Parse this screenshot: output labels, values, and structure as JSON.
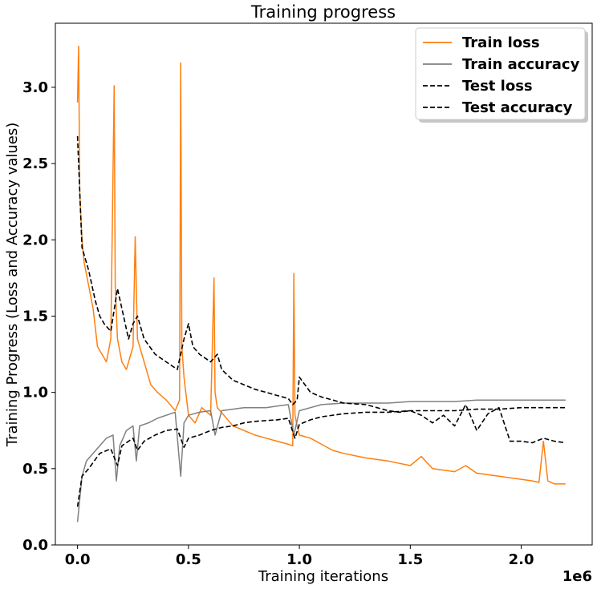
{
  "chart_data": {
    "type": "line",
    "title": "Training progress",
    "xlabel": "Training iterations",
    "ylabel": "Training Progress (Loss and Accuracy values)",
    "x_offset_label": "1e6",
    "xlim": [
      -0.1,
      2.32
    ],
    "ylim": [
      0.0,
      3.42
    ],
    "xticks": [
      0.0,
      0.5,
      1.0,
      1.5,
      2.0
    ],
    "xtick_labels": [
      "0.0",
      "0.5",
      "1.0",
      "1.5",
      "2.0"
    ],
    "yticks": [
      0.0,
      0.5,
      1.0,
      1.5,
      2.0,
      2.5,
      3.0
    ],
    "ytick_labels": [
      "0.0",
      "0.5",
      "1.0",
      "1.5",
      "2.0",
      "2.5",
      "3.0"
    ],
    "grid": false,
    "legend_position": "top-right",
    "colors": {
      "train_loss": "#ff7f0e",
      "train_accuracy": "#808080",
      "test_loss": "#000000",
      "test_accuracy": "#000000"
    },
    "series": [
      {
        "name": "Train loss",
        "style": "solid",
        "color": "#ff7f0e",
        "x": [
          0.0,
          0.005,
          0.01,
          0.02,
          0.03,
          0.05,
          0.07,
          0.09,
          0.11,
          0.13,
          0.15,
          0.165,
          0.17,
          0.18,
          0.2,
          0.22,
          0.25,
          0.26,
          0.27,
          0.3,
          0.33,
          0.36,
          0.4,
          0.44,
          0.46,
          0.465,
          0.47,
          0.48,
          0.5,
          0.53,
          0.56,
          0.6,
          0.615,
          0.62,
          0.63,
          0.66,
          0.7,
          0.75,
          0.8,
          0.85,
          0.9,
          0.95,
          0.97,
          0.975,
          0.98,
          0.99,
          1.0,
          1.05,
          1.1,
          1.15,
          1.2,
          1.3,
          1.4,
          1.5,
          1.55,
          1.6,
          1.7,
          1.75,
          1.8,
          1.9,
          2.0,
          2.05,
          2.08,
          2.1,
          2.12,
          2.15,
          2.2
        ],
        "y": [
          2.9,
          3.27,
          2.3,
          2.0,
          1.85,
          1.7,
          1.55,
          1.3,
          1.25,
          1.2,
          1.35,
          3.01,
          1.7,
          1.35,
          1.2,
          1.15,
          1.3,
          2.02,
          1.35,
          1.2,
          1.05,
          1.0,
          0.95,
          0.88,
          0.95,
          3.16,
          1.3,
          1.1,
          0.85,
          0.8,
          0.9,
          0.85,
          1.75,
          1.0,
          0.9,
          0.85,
          0.78,
          0.75,
          0.72,
          0.7,
          0.68,
          0.66,
          0.65,
          1.78,
          0.85,
          0.78,
          0.72,
          0.7,
          0.66,
          0.62,
          0.6,
          0.57,
          0.55,
          0.52,
          0.58,
          0.5,
          0.48,
          0.52,
          0.47,
          0.45,
          0.43,
          0.42,
          0.41,
          0.68,
          0.42,
          0.4,
          0.4
        ]
      },
      {
        "name": "Train accuracy",
        "style": "solid",
        "color": "#808080",
        "x": [
          0.0,
          0.02,
          0.04,
          0.07,
          0.1,
          0.13,
          0.16,
          0.175,
          0.19,
          0.22,
          0.25,
          0.265,
          0.28,
          0.32,
          0.36,
          0.4,
          0.44,
          0.465,
          0.48,
          0.5,
          0.55,
          0.6,
          0.62,
          0.65,
          0.7,
          0.75,
          0.8,
          0.85,
          0.9,
          0.95,
          0.975,
          1.0,
          1.05,
          1.1,
          1.2,
          1.3,
          1.4,
          1.5,
          1.6,
          1.7,
          1.8,
          1.9,
          2.0,
          2.1,
          2.2
        ],
        "y": [
          0.15,
          0.45,
          0.55,
          0.6,
          0.65,
          0.7,
          0.72,
          0.42,
          0.65,
          0.75,
          0.78,
          0.55,
          0.78,
          0.8,
          0.83,
          0.85,
          0.87,
          0.45,
          0.8,
          0.85,
          0.87,
          0.88,
          0.72,
          0.88,
          0.89,
          0.9,
          0.9,
          0.9,
          0.91,
          0.92,
          0.72,
          0.88,
          0.9,
          0.92,
          0.93,
          0.93,
          0.93,
          0.94,
          0.94,
          0.94,
          0.95,
          0.95,
          0.95,
          0.95,
          0.95
        ]
      },
      {
        "name": "Test loss",
        "style": "dashed",
        "color": "#000000",
        "x": [
          0.0,
          0.02,
          0.05,
          0.08,
          0.1,
          0.12,
          0.15,
          0.18,
          0.2,
          0.23,
          0.25,
          0.27,
          0.3,
          0.35,
          0.4,
          0.45,
          0.48,
          0.5,
          0.52,
          0.55,
          0.6,
          0.63,
          0.65,
          0.7,
          0.75,
          0.8,
          0.85,
          0.9,
          0.95,
          0.97,
          0.99,
          1.0,
          1.05,
          1.1,
          1.15,
          1.2,
          1.3,
          1.35,
          1.4,
          1.45,
          1.5,
          1.55,
          1.6,
          1.65,
          1.7,
          1.75,
          1.8,
          1.85,
          1.9,
          1.95,
          2.0,
          2.05,
          2.1,
          2.15,
          2.2
        ],
        "y": [
          2.68,
          1.95,
          1.8,
          1.6,
          1.5,
          1.45,
          1.4,
          1.68,
          1.55,
          1.35,
          1.45,
          1.5,
          1.35,
          1.25,
          1.2,
          1.15,
          1.35,
          1.45,
          1.3,
          1.25,
          1.2,
          1.25,
          1.15,
          1.08,
          1.05,
          1.02,
          1.0,
          0.98,
          0.96,
          0.92,
          0.95,
          1.1,
          1.0,
          0.97,
          0.95,
          0.93,
          0.92,
          0.9,
          0.88,
          0.87,
          0.88,
          0.85,
          0.8,
          0.85,
          0.78,
          0.92,
          0.75,
          0.86,
          0.9,
          0.68,
          0.68,
          0.67,
          0.7,
          0.68,
          0.67
        ]
      },
      {
        "name": "Test accuracy",
        "style": "dashed",
        "color": "#000000",
        "x": [
          0.0,
          0.02,
          0.05,
          0.1,
          0.15,
          0.18,
          0.2,
          0.25,
          0.27,
          0.3,
          0.35,
          0.4,
          0.45,
          0.48,
          0.5,
          0.55,
          0.6,
          0.65,
          0.7,
          0.75,
          0.8,
          0.9,
          0.95,
          0.98,
          1.0,
          1.05,
          1.1,
          1.2,
          1.3,
          1.4,
          1.5,
          1.6,
          1.7,
          1.8,
          1.9,
          2.0,
          2.1,
          2.2
        ],
        "y": [
          0.25,
          0.45,
          0.5,
          0.6,
          0.63,
          0.52,
          0.65,
          0.7,
          0.62,
          0.68,
          0.72,
          0.75,
          0.76,
          0.64,
          0.7,
          0.72,
          0.75,
          0.77,
          0.78,
          0.8,
          0.81,
          0.82,
          0.83,
          0.7,
          0.79,
          0.82,
          0.84,
          0.86,
          0.87,
          0.87,
          0.88,
          0.88,
          0.88,
          0.89,
          0.89,
          0.9,
          0.9,
          0.9
        ]
      }
    ]
  }
}
